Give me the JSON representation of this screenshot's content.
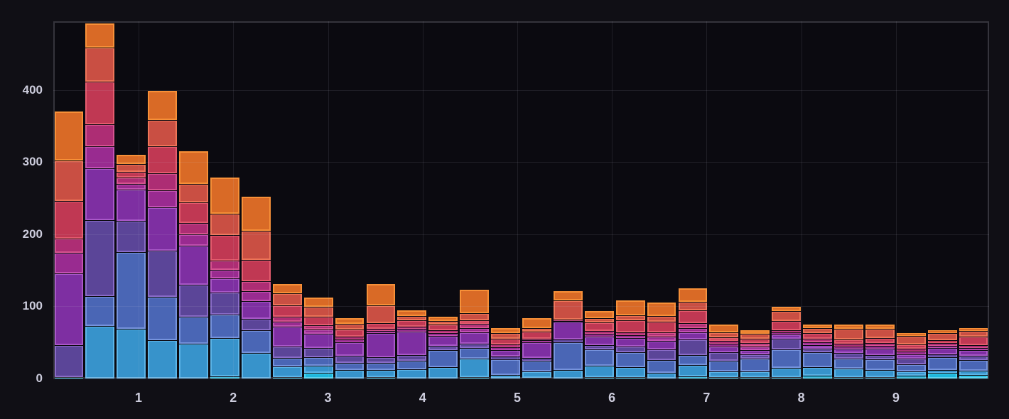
{
  "panel": {
    "title": ""
  },
  "colors": {
    "background": "#100f15",
    "plot_background": "#0b0a10",
    "plot_border": "rgba(204,204,220,0.22)",
    "gridline": "rgba(204,204,220,0.11)",
    "tick_text": "#ccccdc"
  },
  "chart_data": {
    "type": "bar",
    "variant": "stacked-histogram",
    "title": "",
    "xlabel": "",
    "ylabel": "",
    "grid": true,
    "legend": "none",
    "x_ticks": [
      1,
      2,
      3,
      4,
      5,
      6,
      7,
      8,
      9
    ],
    "y_ticks": [
      0,
      100,
      200,
      300,
      400
    ],
    "x_range": [
      0.099,
      9.984
    ],
    "y_range": [
      0,
      495.5
    ],
    "bucket_width": 0.3295,
    "series": [
      {
        "name": "cyan",
        "fill": "#1fb8dd",
        "border": "#45d8f5"
      },
      {
        "name": "light-blue",
        "fill": "#3793cb",
        "border": "#5cb5e8"
      },
      {
        "name": "blue",
        "fill": "#4a66b5",
        "border": "#7693dd"
      },
      {
        "name": "violet",
        "fill": "#5b4598",
        "border": "#8a6cc8"
      },
      {
        "name": "purple",
        "fill": "#7e2fa2",
        "border": "#a958c8"
      },
      {
        "name": "magenta",
        "fill": "#992b90",
        "border": "#c353b3"
      },
      {
        "name": "pink",
        "fill": "#ad2d74",
        "border": "#d6548f"
      },
      {
        "name": "crimson",
        "fill": "#c03853",
        "border": "#e55c6e"
      },
      {
        "name": "red",
        "fill": "#c94f43",
        "border": "#ee7558"
      },
      {
        "name": "orange",
        "fill": "#d96a26",
        "border": "#f79038"
      }
    ],
    "bars": [
      {
        "x": 0.26,
        "total": 370,
        "segments": [
          2,
          0,
          0,
          44,
          100,
          28,
          20,
          52,
          56,
          68
        ]
      },
      {
        "x": 0.59,
        "total": 493,
        "segments": [
          0,
          73,
          41,
          106,
          72,
          30,
          31,
          59,
          47,
          34
        ]
      },
      {
        "x": 0.92,
        "total": 310,
        "segments": [
          0,
          69,
          106,
          44,
          43,
          8,
          9,
          8,
          11,
          12
        ]
      },
      {
        "x": 1.25,
        "total": 399,
        "segments": [
          0,
          53,
          60,
          64,
          60,
          24,
          24,
          37,
          37,
          40
        ]
      },
      {
        "x": 1.58,
        "total": 315,
        "segments": [
          0,
          48,
          38,
          44,
          54,
          16,
          16,
          28,
          26,
          45
        ]
      },
      {
        "x": 1.91,
        "total": 279,
        "segments": [
          3,
          53,
          33,
          30,
          20,
          12,
          13,
          35,
          30,
          50
        ]
      },
      {
        "x": 2.24,
        "total": 252,
        "segments": [
          0,
          35,
          32,
          16,
          24,
          14,
          14,
          30,
          40,
          47
        ]
      },
      {
        "x": 2.57,
        "total": 131,
        "segments": [
          2,
          15,
          12,
          15,
          28,
          7,
          7,
          15,
          17,
          13
        ]
      },
      {
        "x": 2.9,
        "total": 112,
        "segments": [
          8,
          10,
          12,
          12,
          20,
          6,
          6,
          12,
          14,
          12
        ]
      },
      {
        "x": 3.23,
        "total": 84,
        "segments": [
          0,
          12,
          10,
          10,
          18,
          4,
          4,
          10,
          8,
          8
        ]
      },
      {
        "x": 3.56,
        "total": 131,
        "segments": [
          2,
          10,
          10,
          8,
          33,
          3,
          3,
          8,
          24,
          30
        ]
      },
      {
        "x": 3.89,
        "total": 95,
        "segments": [
          0,
          13,
          12,
          8,
          32,
          4,
          3,
          9,
          6,
          8
        ]
      },
      {
        "x": 4.22,
        "total": 86,
        "segments": [
          0,
          16,
          23,
          6,
          14,
          4,
          4,
          8,
          5,
          6
        ]
      },
      {
        "x": 4.55,
        "total": 123,
        "segments": [
          2,
          26,
          14,
          6,
          16,
          6,
          6,
          5,
          10,
          32
        ]
      },
      {
        "x": 4.88,
        "total": 70,
        "segments": [
          0,
          5,
          22,
          4,
          8,
          4,
          4,
          8,
          8,
          7
        ]
      },
      {
        "x": 5.21,
        "total": 84,
        "segments": [
          1,
          9,
          15,
          4,
          21,
          3,
          2,
          10,
          5,
          14
        ]
      },
      {
        "x": 5.54,
        "total": 121,
        "segments": [
          0,
          12,
          38,
          4,
          25,
          1,
          2,
          0,
          26,
          13
        ]
      },
      {
        "x": 5.87,
        "total": 94,
        "segments": [
          2,
          16,
          22,
          6,
          12,
          4,
          4,
          12,
          6,
          10
        ]
      },
      {
        "x": 6.2,
        "total": 108,
        "segments": [
          2,
          14,
          20,
          8,
          12,
          4,
          4,
          17,
          7,
          20
        ]
      },
      {
        "x": 6.53,
        "total": 105,
        "segments": [
          0,
          8,
          18,
          14,
          12,
          6,
          6,
          15,
          8,
          18
        ]
      },
      {
        "x": 6.86,
        "total": 125,
        "segments": [
          3,
          16,
          14,
          21,
          10,
          6,
          7,
          18,
          11,
          19
        ]
      },
      {
        "x": 7.19,
        "total": 75,
        "segments": [
          2,
          8,
          15,
          11,
          8,
          4,
          4,
          5,
          7,
          11
        ]
      },
      {
        "x": 7.52,
        "total": 67,
        "segments": [
          2,
          8,
          18,
          6,
          5,
          5,
          5,
          6,
          7,
          5
        ]
      },
      {
        "x": 7.85,
        "total": 100,
        "segments": [
          2,
          13,
          25,
          15,
          6,
          3,
          3,
          13,
          14,
          6
        ]
      },
      {
        "x": 8.18,
        "total": 75,
        "segments": [
          4,
          12,
          20,
          5,
          5,
          4,
          5,
          8,
          7,
          5
        ]
      },
      {
        "x": 8.51,
        "total": 75,
        "segments": [
          2,
          12,
          14,
          7,
          6,
          3,
          4,
          6,
          15,
          6
        ]
      },
      {
        "x": 8.84,
        "total": 75,
        "segments": [
          2,
          10,
          15,
          6,
          8,
          4,
          4,
          7,
          13,
          6
        ]
      },
      {
        "x": 9.17,
        "total": 63,
        "segments": [
          4,
          6,
          10,
          8,
          6,
          3,
          4,
          6,
          12,
          4
        ]
      },
      {
        "x": 9.5,
        "total": 67,
        "segments": [
          8,
          4,
          18,
          4,
          8,
          3,
          4,
          4,
          10,
          4
        ]
      },
      {
        "x": 9.83,
        "total": 70,
        "segments": [
          5,
          6,
          15,
          6,
          7,
          3,
          4,
          12,
          8,
          4
        ]
      }
    ]
  }
}
